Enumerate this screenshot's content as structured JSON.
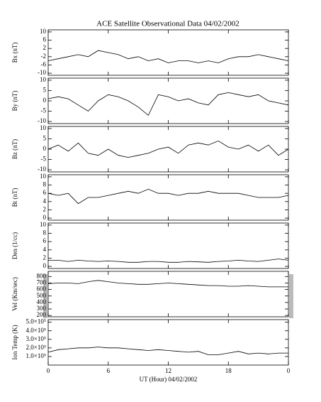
{
  "chart_data": [
    {
      "type": "line",
      "title": "ACE Satellite Observational Data  04/02/2002",
      "ylabel": "Bx (nT)",
      "color": "#000000",
      "x": [
        0,
        1,
        2,
        3,
        4,
        5,
        6,
        7,
        8,
        9,
        10,
        11,
        12,
        13,
        14,
        15,
        16,
        17,
        18,
        19,
        20,
        21,
        22,
        23,
        24
      ],
      "values": [
        -4,
        -3,
        -2,
        -1,
        -2,
        1,
        0,
        -1,
        -3,
        -2,
        -4,
        -3,
        -5,
        -4,
        -4,
        -5,
        -4,
        -5,
        -3,
        -2,
        -2,
        -1,
        -2,
        -3,
        -4
      ],
      "ylim": [
        -11,
        11
      ],
      "yticks": [
        -10,
        -6,
        -2,
        2,
        6,
        10
      ]
    },
    {
      "type": "line",
      "ylabel": "By (nT)",
      "color": "#000000",
      "x": [
        0,
        1,
        2,
        3,
        4,
        5,
        6,
        7,
        8,
        9,
        10,
        11,
        12,
        13,
        14,
        15,
        16,
        17,
        18,
        19,
        20,
        21,
        22,
        23,
        24
      ],
      "values": [
        1,
        2,
        1,
        -2,
        -5,
        0,
        3,
        2,
        0,
        -3,
        -7,
        3,
        2,
        0,
        1,
        -1,
        -2,
        3,
        4,
        3,
        2,
        3,
        0,
        -1,
        -2
      ],
      "ylim": [
        -11,
        11
      ],
      "yticks": [
        -10,
        -5,
        0,
        5,
        10
      ]
    },
    {
      "type": "line",
      "ylabel": "Bz (nT)",
      "color": "#000000",
      "x": [
        0,
        1,
        2,
        3,
        4,
        5,
        6,
        7,
        8,
        9,
        10,
        11,
        12,
        13,
        14,
        15,
        16,
        17,
        18,
        19,
        20,
        21,
        22,
        23,
        24
      ],
      "values": [
        0,
        2,
        -1,
        3,
        -2,
        -3,
        0,
        -3,
        -4,
        -3,
        -2,
        0,
        1,
        -2,
        2,
        3,
        2,
        4,
        1,
        0,
        2,
        -1,
        2,
        -3,
        0
      ],
      "ylim": [
        -11,
        11
      ],
      "yticks": [
        -10,
        -5,
        0,
        5,
        10
      ]
    },
    {
      "type": "line",
      "ylabel": "Bt (nT)",
      "color": "#000000",
      "x": [
        0,
        1,
        2,
        3,
        4,
        5,
        6,
        7,
        8,
        9,
        10,
        11,
        12,
        13,
        14,
        15,
        16,
        17,
        18,
        19,
        20,
        21,
        22,
        23,
        24
      ],
      "values": [
        6,
        5.5,
        6,
        3.5,
        5,
        5,
        5.5,
        6,
        6.5,
        6,
        7,
        6,
        6,
        5.5,
        6,
        6,
        6.5,
        6,
        6,
        6,
        5.5,
        5,
        5,
        5,
        5.5
      ],
      "ylim": [
        -0.5,
        10.5
      ],
      "yticks": [
        0,
        2,
        4,
        6,
        8,
        10
      ]
    },
    {
      "type": "line",
      "ylabel": "Den (1/cc)",
      "color": "#000000",
      "x": [
        0,
        1,
        2,
        3,
        4,
        5,
        6,
        7,
        8,
        9,
        10,
        11,
        12,
        13,
        14,
        15,
        16,
        17,
        18,
        19,
        20,
        21,
        22,
        23,
        24
      ],
      "values": [
        1.5,
        1.5,
        1.2,
        1.5,
        1.3,
        1.2,
        1.3,
        1.2,
        1,
        1,
        1.2,
        1.2,
        1,
        1,
        1.2,
        1.1,
        1,
        1.2,
        1.3,
        1.5,
        1.3,
        1.2,
        1.5,
        1.8,
        1.5
      ],
      "ylim": [
        -0.5,
        10.5
      ],
      "yticks": [
        0,
        2,
        4,
        6,
        8,
        10
      ]
    },
    {
      "type": "line",
      "ylabel": "Vel (Km/sec)",
      "color": "#000000",
      "x": [
        0,
        1,
        2,
        3,
        4,
        5,
        6,
        7,
        8,
        9,
        10,
        11,
        12,
        13,
        14,
        15,
        16,
        17,
        18,
        19,
        20,
        21,
        22,
        23,
        24
      ],
      "values": [
        690,
        700,
        700,
        690,
        720,
        740,
        720,
        700,
        690,
        680,
        680,
        690,
        700,
        690,
        680,
        670,
        660,
        660,
        650,
        650,
        660,
        650,
        640,
        640,
        640
      ],
      "ylim": [
        180,
        880
      ],
      "yticks": [
        200,
        300,
        400,
        500,
        600,
        700,
        800
      ]
    },
    {
      "type": "line",
      "ylabel": "Ion Temp (K)",
      "color": "#000000",
      "xlabel": "UT (Hour)  04/02/2002",
      "x": [
        0,
        1,
        2,
        3,
        4,
        5,
        6,
        7,
        8,
        9,
        10,
        11,
        12,
        13,
        14,
        15,
        16,
        17,
        18,
        19,
        20,
        21,
        22,
        23,
        24
      ],
      "values": [
        150000,
        180000,
        190000,
        200000,
        200000,
        210000,
        200000,
        200000,
        190000,
        180000,
        170000,
        180000,
        170000,
        160000,
        150000,
        160000,
        120000,
        120000,
        140000,
        160000,
        130000,
        140000,
        130000,
        140000,
        140000
      ],
      "ylim": [
        0,
        530000
      ],
      "yticks": [
        {
          "value": 100000,
          "label": "1.0×10⁵"
        },
        {
          "value": 200000,
          "label": "2.0×10⁵"
        },
        {
          "value": 300000,
          "label": "3.0×10⁵"
        },
        {
          "value": 400000,
          "label": "4.0×10⁵"
        },
        {
          "value": 500000,
          "label": "5.0×10⁵"
        }
      ],
      "xlim": [
        0,
        24
      ],
      "xticks": [
        0,
        6,
        12,
        18,
        {
          "value": 24,
          "label": "0"
        }
      ]
    }
  ]
}
